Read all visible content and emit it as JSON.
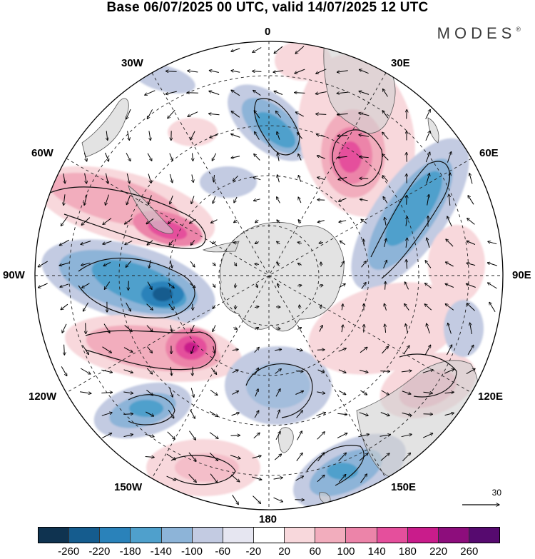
{
  "title": "Base 06/07/2025 00 UTC, valid 14/07/2025 12 UTC",
  "brand": "MODES",
  "brand_mark": "®",
  "longitude_labels": {
    "lon_0": "0",
    "lon_30e": "30E",
    "lon_60e": "60E",
    "lon_90e": "90E",
    "lon_120e": "120E",
    "lon_150e": "150E",
    "lon_180": "180",
    "lon_150w": "150W",
    "lon_120w": "120W",
    "lon_90w": "90W",
    "lon_60w": "60W",
    "lon_30w": "30W"
  },
  "reference_vector": {
    "label": "30"
  },
  "colorbar": {
    "ticks": [
      "-260",
      "-220",
      "-180",
      "-140",
      "-100",
      "-60",
      "-20",
      "20",
      "60",
      "100",
      "140",
      "180",
      "220",
      "260"
    ],
    "colors": [
      "#0f3350",
      "#155c8e",
      "#2a82ba",
      "#4fa0cc",
      "#8db4d8",
      "#c3cbe2",
      "#e6e6f1",
      "#ffffff",
      "#f8d8dc",
      "#f2adbd",
      "#ec84a9",
      "#e54f9c",
      "#c91c8b",
      "#8d0d7c",
      "#560a6f"
    ]
  },
  "anomaly_features": [
    {
      "sign": "negative",
      "level": -180,
      "region": "near 0 meridian, mid-latitudes"
    },
    {
      "sign": "positive",
      "level": 180,
      "region": "near 30E, mid-latitudes"
    },
    {
      "sign": "negative",
      "level": -180,
      "region": "60E-90E band"
    },
    {
      "sign": "positive",
      "level": 140,
      "region": "60W-90W, Antarctic Peninsula"
    },
    {
      "sign": "negative",
      "level": -220,
      "region": "90W, west of peninsula"
    },
    {
      "sign": "positive",
      "level": 180,
      "region": "110W-120W"
    },
    {
      "sign": "negative",
      "level": -140,
      "region": "130W"
    },
    {
      "sign": "negative",
      "level": -100,
      "region": "180, near Antarctica"
    },
    {
      "sign": "negative",
      "level": -140,
      "region": "150E"
    },
    {
      "sign": "positive",
      "level": 60,
      "region": "120E, Australia"
    }
  ]
}
